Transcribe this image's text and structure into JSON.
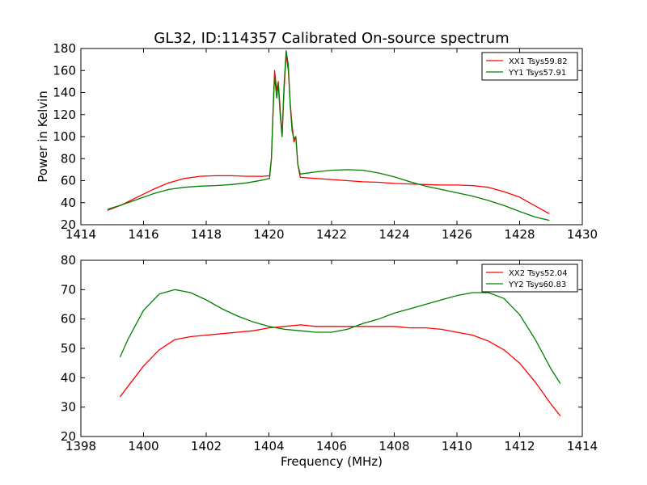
{
  "figure": {
    "title": "GL32, ID:114357 Calibrated On-source spectrum",
    "ylabel": "Power in Kelvin",
    "xlabel": "Frequency (MHz)"
  },
  "colors": {
    "red": "#ff0000",
    "green": "#008000"
  },
  "chart_data": [
    {
      "type": "line",
      "xlim": [
        1414,
        1430
      ],
      "ylim": [
        20,
        180
      ],
      "xticks": [
        1414,
        1416,
        1418,
        1420,
        1422,
        1424,
        1426,
        1428,
        1430
      ],
      "yticks": [
        20,
        40,
        60,
        80,
        100,
        120,
        140,
        160,
        180
      ],
      "legend_position": "top-right",
      "series": [
        {
          "name": "XX1 Tsys59.82",
          "color": "#ff0000",
          "points": [
            [
              1414.85,
              33
            ],
            [
              1415.3,
              38
            ],
            [
              1415.8,
              45
            ],
            [
              1416.3,
              52
            ],
            [
              1416.8,
              58
            ],
            [
              1417.3,
              62
            ],
            [
              1417.8,
              64
            ],
            [
              1418.3,
              64.5
            ],
            [
              1418.8,
              64.5
            ],
            [
              1419.3,
              64
            ],
            [
              1419.8,
              64
            ],
            [
              1420.02,
              64.5
            ],
            [
              1420.08,
              80
            ],
            [
              1420.13,
              120
            ],
            [
              1420.18,
              160
            ],
            [
              1420.25,
              142
            ],
            [
              1420.3,
              150
            ],
            [
              1420.36,
              125
            ],
            [
              1420.42,
              100
            ],
            [
              1420.48,
              140
            ],
            [
              1420.55,
              175
            ],
            [
              1420.62,
              160
            ],
            [
              1420.68,
              130
            ],
            [
              1420.74,
              110
            ],
            [
              1420.8,
              95
            ],
            [
              1420.86,
              100
            ],
            [
              1420.92,
              75
            ],
            [
              1421.0,
              63
            ],
            [
              1421.5,
              62
            ],
            [
              1422.0,
              61
            ],
            [
              1422.5,
              60
            ],
            [
              1423.0,
              59
            ],
            [
              1423.5,
              58.5
            ],
            [
              1424.0,
              57.5
            ],
            [
              1424.5,
              57
            ],
            [
              1425.0,
              56.5
            ],
            [
              1425.5,
              56
            ],
            [
              1426.0,
              56
            ],
            [
              1426.5,
              55.5
            ],
            [
              1427.0,
              54
            ],
            [
              1427.5,
              50
            ],
            [
              1428.0,
              45
            ],
            [
              1428.5,
              37
            ],
            [
              1428.95,
              30
            ]
          ]
        },
        {
          "name": "YY1 Tsys57.91",
          "color": "#008000",
          "points": [
            [
              1414.85,
              34
            ],
            [
              1415.3,
              38
            ],
            [
              1415.8,
              43
            ],
            [
              1416.3,
              48
            ],
            [
              1416.8,
              52
            ],
            [
              1417.3,
              54
            ],
            [
              1417.8,
              55
            ],
            [
              1418.3,
              55.5
            ],
            [
              1418.8,
              56.5
            ],
            [
              1419.3,
              58
            ],
            [
              1419.8,
              60.5
            ],
            [
              1420.02,
              62
            ],
            [
              1420.08,
              80
            ],
            [
              1420.13,
              120
            ],
            [
              1420.18,
              155
            ],
            [
              1420.25,
              135
            ],
            [
              1420.3,
              148
            ],
            [
              1420.36,
              120
            ],
            [
              1420.42,
              100
            ],
            [
              1420.48,
              145
            ],
            [
              1420.55,
              178
            ],
            [
              1420.62,
              165
            ],
            [
              1420.68,
              128
            ],
            [
              1420.74,
              105
            ],
            [
              1420.8,
              98
            ],
            [
              1420.86,
              100
            ],
            [
              1420.92,
              75
            ],
            [
              1421.0,
              66
            ],
            [
              1421.5,
              68
            ],
            [
              1422.0,
              69.5
            ],
            [
              1422.5,
              70
            ],
            [
              1423.0,
              69.5
            ],
            [
              1423.5,
              67
            ],
            [
              1424.0,
              63.5
            ],
            [
              1424.5,
              59
            ],
            [
              1425.0,
              55
            ],
            [
              1425.5,
              52
            ],
            [
              1426.0,
              49
            ],
            [
              1426.5,
              46
            ],
            [
              1427.0,
              42
            ],
            [
              1427.5,
              37.5
            ],
            [
              1428.0,
              32
            ],
            [
              1428.5,
              27
            ],
            [
              1428.95,
              24
            ]
          ]
        }
      ]
    },
    {
      "type": "line",
      "xlim": [
        1398,
        1414
      ],
      "ylim": [
        20,
        80
      ],
      "xticks": [
        1398,
        1400,
        1402,
        1404,
        1406,
        1408,
        1410,
        1412,
        1414
      ],
      "yticks": [
        20,
        30,
        40,
        50,
        60,
        70,
        80
      ],
      "legend_position": "top-right",
      "series": [
        {
          "name": "XX2 Tsys52.04",
          "color": "#ff0000",
          "points": [
            [
              1399.25,
              33.5
            ],
            [
              1399.5,
              37
            ],
            [
              1400.0,
              44
            ],
            [
              1400.5,
              49.5
            ],
            [
              1401.0,
              53
            ],
            [
              1401.5,
              54
            ],
            [
              1402.0,
              54.5
            ],
            [
              1402.5,
              55
            ],
            [
              1403.0,
              55.5
            ],
            [
              1403.5,
              56
            ],
            [
              1404.0,
              57
            ],
            [
              1404.5,
              57.5
            ],
            [
              1405.0,
              58
            ],
            [
              1405.5,
              57.5
            ],
            [
              1406.0,
              57.5
            ],
            [
              1406.5,
              57.5
            ],
            [
              1407.0,
              57.5
            ],
            [
              1407.5,
              57.5
            ],
            [
              1408.0,
              57.5
            ],
            [
              1408.5,
              57
            ],
            [
              1409.0,
              57
            ],
            [
              1409.5,
              56.5
            ],
            [
              1410.0,
              55.5
            ],
            [
              1410.5,
              54.5
            ],
            [
              1411.0,
              52.5
            ],
            [
              1411.5,
              49.5
            ],
            [
              1412.0,
              45
            ],
            [
              1412.5,
              38.5
            ],
            [
              1413.0,
              31
            ],
            [
              1413.3,
              27
            ]
          ]
        },
        {
          "name": "YY2 Tsys60.83",
          "color": "#008000",
          "points": [
            [
              1399.25,
              47
            ],
            [
              1399.5,
              53
            ],
            [
              1400.0,
              63
            ],
            [
              1400.5,
              68.5
            ],
            [
              1401.0,
              70
            ],
            [
              1401.5,
              69
            ],
            [
              1402.0,
              66.5
            ],
            [
              1402.5,
              63.5
            ],
            [
              1403.0,
              61
            ],
            [
              1403.5,
              59
            ],
            [
              1404.0,
              57.5
            ],
            [
              1404.5,
              56.5
            ],
            [
              1405.0,
              56
            ],
            [
              1405.5,
              55.5
            ],
            [
              1406.0,
              55.5
            ],
            [
              1406.5,
              56.5
            ],
            [
              1407.0,
              58.5
            ],
            [
              1407.5,
              60
            ],
            [
              1408.0,
              62
            ],
            [
              1408.5,
              63.5
            ],
            [
              1409.0,
              65
            ],
            [
              1409.5,
              66.5
            ],
            [
              1410.0,
              68
            ],
            [
              1410.5,
              69
            ],
            [
              1411.0,
              69
            ],
            [
              1411.5,
              67
            ],
            [
              1412.0,
              61.5
            ],
            [
              1412.5,
              53
            ],
            [
              1413.0,
              43
            ],
            [
              1413.3,
              38
            ]
          ]
        }
      ]
    }
  ]
}
